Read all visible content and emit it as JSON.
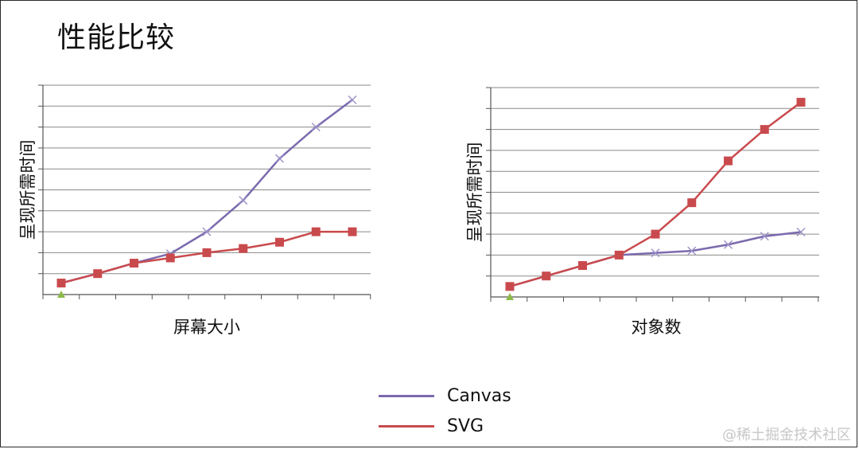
{
  "title": "性能比较",
  "colors": {
    "canvas": "#7b6aae",
    "svg": "#c94a4d",
    "grid": "#8a8a8a",
    "axis": "#555555",
    "origin_marker": "#8db84a"
  },
  "legend": [
    {
      "label": "Canvas",
      "color": "#7b6aae"
    },
    {
      "label": "SVG",
      "color": "#c94a4d"
    }
  ],
  "watermark": "@稀土掘金技术社区",
  "chart_data": [
    {
      "type": "line",
      "xlabel": "屏幕大小",
      "ylabel": "呈现所需时间",
      "x": [
        1,
        2,
        3,
        4,
        5,
        6,
        7,
        8,
        9
      ],
      "ylim": [
        0,
        10
      ],
      "grid": true,
      "series": [
        {
          "name": "Canvas",
          "marker": "x",
          "values": [
            0.55,
            1.0,
            1.5,
            1.95,
            3.0,
            4.5,
            6.5,
            8.0,
            9.3
          ]
        },
        {
          "name": "SVG",
          "marker": "square",
          "values": [
            0.55,
            1.0,
            1.5,
            1.75,
            2.0,
            2.2,
            2.5,
            3.0,
            3.0
          ]
        }
      ]
    },
    {
      "type": "line",
      "xlabel": "对象数",
      "ylabel": "呈现所需时间",
      "x": [
        1,
        2,
        3,
        4,
        5,
        6,
        7,
        8,
        9
      ],
      "ylim": [
        0,
        10
      ],
      "grid": true,
      "series": [
        {
          "name": "Canvas",
          "marker": "x",
          "values": [
            0.5,
            1.0,
            1.5,
            2.0,
            2.1,
            2.2,
            2.5,
            2.9,
            3.1
          ]
        },
        {
          "name": "SVG",
          "marker": "square",
          "values": [
            0.5,
            1.0,
            1.5,
            2.0,
            3.0,
            4.5,
            6.5,
            8.0,
            9.3
          ]
        }
      ]
    }
  ]
}
